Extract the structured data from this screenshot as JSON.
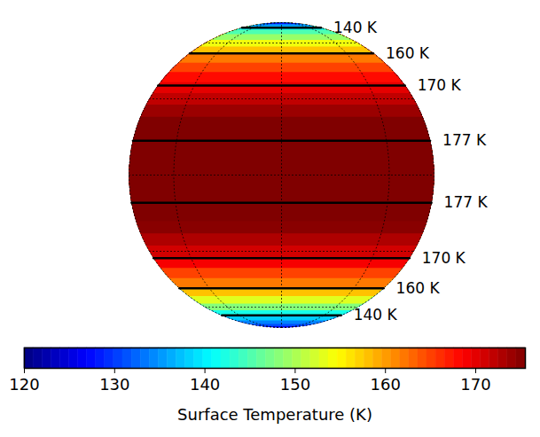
{
  "chart_data": {
    "type": "globe",
    "colorbar_label": "Surface Temperature (K)",
    "latitude": [
      -90,
      -85,
      -80,
      -75,
      -70,
      -65,
      -60,
      -55,
      -50,
      -45,
      -40,
      -35,
      -30,
      -25,
      -20,
      -15,
      -10,
      -5,
      0,
      5,
      10,
      15,
      20,
      25,
      30,
      35,
      40,
      45,
      50,
      55,
      60,
      65,
      70,
      75,
      80,
      85,
      90
    ],
    "temperature": [
      125,
      127,
      131,
      134,
      138,
      142,
      148,
      153,
      158,
      162,
      165,
      169,
      171,
      173,
      175,
      176,
      177,
      178,
      178,
      178,
      177.5,
      177,
      176,
      174,
      172,
      170,
      168,
      165,
      162,
      158,
      154,
      149,
      145,
      140,
      134,
      128,
      122
    ],
    "contours": [
      {
        "value": 140,
        "label": "140 K",
        "latitude": 75
      },
      {
        "value": 160,
        "label": "160 K",
        "latitude": 53
      },
      {
        "value": 170,
        "label": "170 K",
        "latitude": 36
      },
      {
        "value": 177,
        "label": "177 K",
        "latitude": 13
      },
      {
        "value": 177,
        "label": "177 K",
        "latitude": -10.5
      },
      {
        "value": 170,
        "label": "170 K",
        "latitude": -33
      },
      {
        "value": 160,
        "label": "160 K",
        "latitude": -48
      },
      {
        "value": 140,
        "label": "140 K",
        "latitude": -67
      }
    ],
    "colorbar_range": [
      120,
      175.5
    ],
    "colorbar_ticks": [
      120,
      130,
      140,
      150,
      160,
      170
    ],
    "grid": true
  }
}
